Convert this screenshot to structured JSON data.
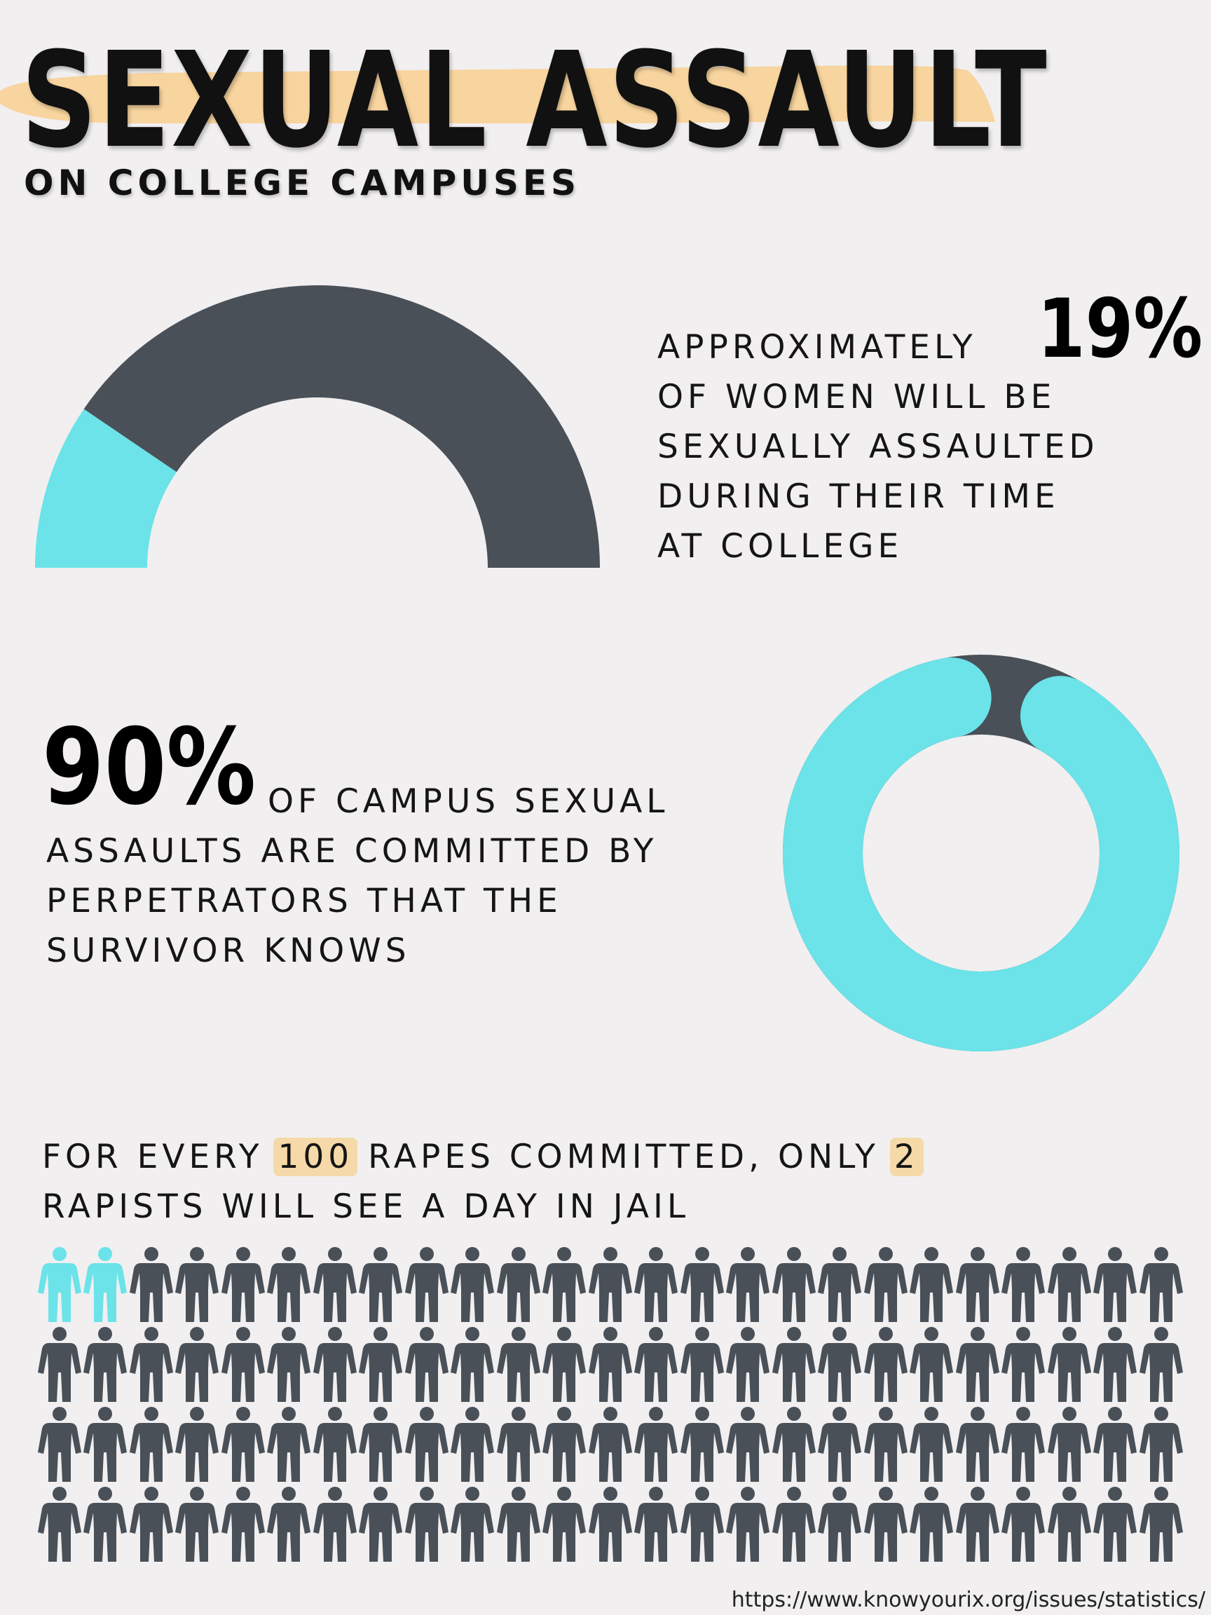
{
  "header": {
    "title": "SEXUAL ASSAULT",
    "subtitle": "ON COLLEGE CAMPUSES"
  },
  "stat1": {
    "percent": "19%",
    "lines": [
      "APPROXIMATELY",
      "OF WOMEN WILL BE",
      "SEXUALLY ASSAULTED",
      "DURING THEIR TIME",
      "AT COLLEGE"
    ]
  },
  "stat2": {
    "percent": "90%",
    "lines": [
      "OF CAMPUS SEXUAL",
      "ASSAULTS ARE COMMITTED BY",
      "PERPETRATORS THAT THE",
      "SURVIVOR KNOWS"
    ]
  },
  "stat3": {
    "line1_before": "FOR EVERY ",
    "hl_100": "100",
    "line1_middle": " RAPES COMMITTED, ONLY ",
    "hl_2": "2",
    "line2": "RAPISTS WILL SEE A DAY IN JAIL"
  },
  "source": "https://www.knowyourix.org/issues/statistics/",
  "chart_data": [
    {
      "type": "pie",
      "name": "stat1-gauge",
      "values": [
        19,
        81
      ],
      "colors": [
        "#6be3e8",
        "#495058"
      ]
    },
    {
      "type": "pie",
      "name": "stat2-donut",
      "values": [
        90,
        10
      ],
      "colors": [
        "#6be3e8",
        "#495058"
      ]
    },
    {
      "type": "table",
      "name": "people-grid",
      "total": 100,
      "highlighted": 2,
      "colors": [
        "#6be3e8",
        "#495058"
      ]
    }
  ]
}
